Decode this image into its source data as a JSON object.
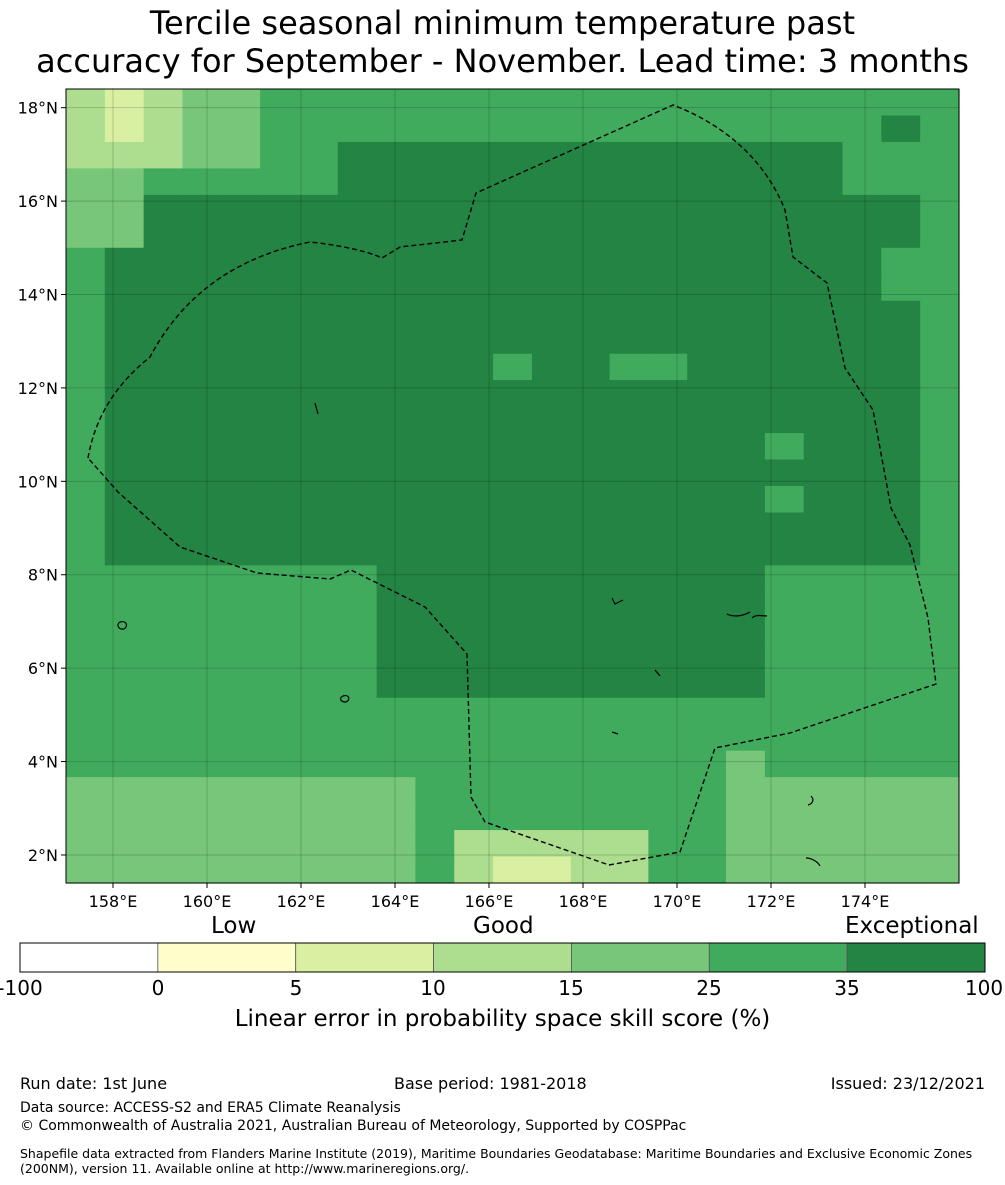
{
  "title_line1": "Tercile seasonal minimum temperature past",
  "title_line2": "accuracy for September - November. Lead time: 3 months",
  "map": {
    "lon_ticks": [
      "158°E",
      "160°E",
      "162°E",
      "164°E",
      "166°E",
      "168°E",
      "170°E",
      "172°E",
      "174°E"
    ],
    "lat_ticks": [
      "18°N",
      "16°N",
      "14°N",
      "12°N",
      "10°N",
      "8°N",
      "6°N",
      "4°N",
      "2°N"
    ],
    "lon_range": [
      157.0,
      176.0
    ],
    "lat_range": [
      1.4,
      18.4
    ],
    "legend_colors": [
      "#ffffff",
      "#ffffcc",
      "#d9f0a3",
      "#addd8e",
      "#78c679",
      "#41ab5d",
      "#238443"
    ]
  },
  "colorbar": {
    "words": {
      "low": "Low",
      "good": "Good",
      "exceptional": "Exceptional"
    },
    "ticks": [
      "-100",
      "0",
      "5",
      "10",
      "15",
      "25",
      "35",
      "100"
    ],
    "label": "Linear error in probability space skill score (%)"
  },
  "footer": {
    "run_date": "Run date: 1st June",
    "base_period": "Base period: 1981-2018",
    "issued": "Issued: 23/12/2021",
    "data_source": "Data source: ACCESS-S2 and ERA5 Climate Reanalysis",
    "copyright": "© Commonwealth of Australia 2021, Australian Bureau of Meteorology, Supported by COSPPac",
    "shapefile": "Shapefile data extracted from Flanders Marine Institute (2019), Maritime Boundaries Geodatabase: Maritime Boundaries and Exclusive Economic Zones (200NM), version 11. Available online at http://www.marineregions.org/."
  }
}
